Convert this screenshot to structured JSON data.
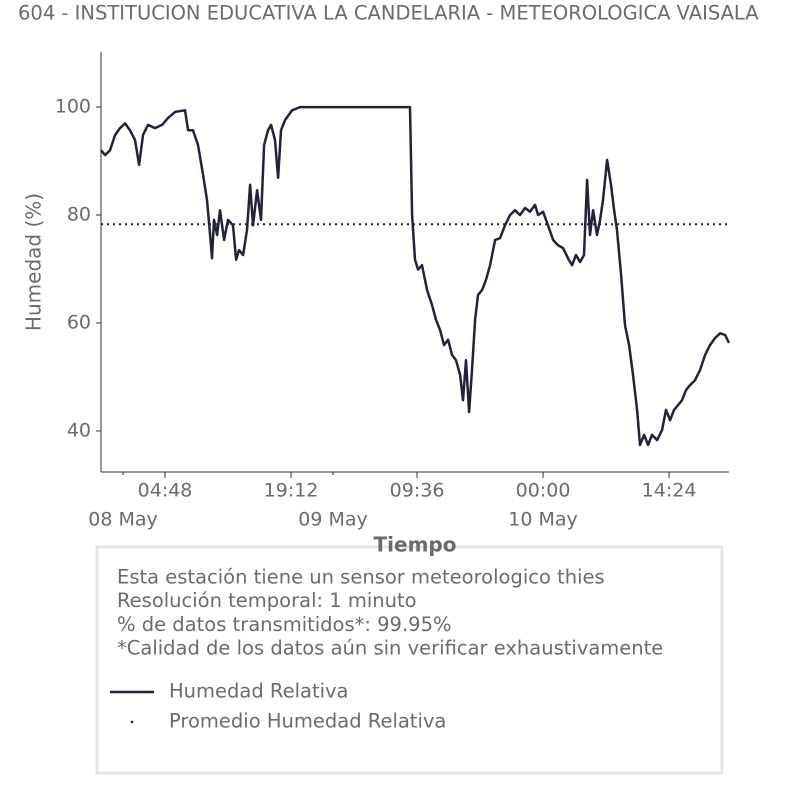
{
  "chart_data": {
    "type": "line",
    "title": "604 - INSTITUCION EDUCATIVA LA CANDELARIA - METEOROLOGICA VAISALA",
    "xlabel": "Tiempo",
    "ylabel": "Humedad (%)",
    "x": [
      "07 May 21:29",
      "07 May 21:57",
      "07 May 22:31",
      "07 May 23:05",
      "07 May 23:39",
      "08 May 00:14",
      "08 May 00:48",
      "08 May 01:22",
      "08 May 01:50",
      "08 May 02:17",
      "08 May 02:51",
      "08 May 03:39",
      "08 May 04:27",
      "08 May 05:09",
      "08 May 05:57",
      "08 May 07:05",
      "08 May 07:26",
      "08 May 08:00",
      "08 May 08:34",
      "08 May 09:09",
      "08 May 09:36",
      "08 May 09:57",
      "08 May 10:10",
      "08 May 10:24",
      "08 May 10:45",
      "08 May 11:05",
      "08 May 11:33",
      "08 May 12:00",
      "08 May 12:34",
      "08 May 12:55",
      "08 May 13:15",
      "08 May 13:43",
      "08 May 14:10",
      "08 May 14:31",
      "08 May 14:51",
      "08 May 15:19",
      "08 May 15:46",
      "08 May 16:07",
      "08 May 16:34",
      "08 May 16:55",
      "08 May 17:22",
      "08 May 17:43",
      "08 May 18:03",
      "08 May 18:31",
      "08 May 19:19",
      "08 May 20:14",
      "09 May 08:48",
      "09 May 09:02",
      "09 May 09:22",
      "09 May 09:43",
      "09 May 10:10",
      "09 May 10:45",
      "09 May 11:19",
      "09 May 11:46",
      "09 May 12:14",
      "09 May 12:41",
      "09 May 13:09",
      "09 May 13:36",
      "09 May 14:03",
      "09 May 14:31",
      "09 May 14:51",
      "09 May 15:12",
      "09 May 15:33",
      "09 May 15:53",
      "09 May 16:14",
      "09 May 16:34",
      "09 May 17:02",
      "09 May 17:29",
      "09 May 17:57",
      "09 May 18:31",
      "09 May 19:05",
      "09 May 19:39",
      "09 May 20:14",
      "09 May 20:48",
      "09 May 21:22",
      "09 May 21:57",
      "09 May 22:31",
      "09 May 23:05",
      "09 May 23:26",
      "10 May 00:00",
      "10 May 00:34",
      "10 May 01:09",
      "10 May 01:43",
      "10 May 02:17",
      "10 May 02:51",
      "10 May 03:19",
      "10 May 03:46",
      "10 May 04:14",
      "10 May 04:41",
      "10 May 05:02",
      "10 May 05:22",
      "10 May 05:43",
      "10 May 06:10",
      "10 May 06:31",
      "10 May 06:51",
      "10 May 07:19",
      "10 May 07:46",
      "10 May 08:07",
      "10 May 08:27",
      "10 May 08:55",
      "10 May 09:22",
      "10 May 09:50",
      "10 May 10:17",
      "10 May 10:45",
      "10 May 11:05",
      "10 May 11:33",
      "10 May 12:00",
      "10 May 12:27",
      "10 May 13:02",
      "10 May 13:36",
      "10 May 14:03",
      "10 May 14:31",
      "10 May 14:58",
      "10 May 15:26",
      "10 May 15:53",
      "10 May 16:21",
      "10 May 16:48",
      "10 May 17:22",
      "10 May 17:57",
      "10 May 18:31",
      "10 May 19:05",
      "10 May 19:39",
      "10 May 20:14",
      "10 May 20:48",
      "10 May 21:15"
    ],
    "series": [
      {
        "name": "Humedad Relativa",
        "color": "#22223b",
        "values": [
          92.0,
          91.1,
          92.0,
          94.8,
          96.1,
          97.0,
          95.7,
          93.9,
          89.3,
          94.8,
          96.7,
          96.1,
          96.7,
          98.0,
          99.1,
          99.4,
          95.7,
          95.7,
          93.0,
          87.4,
          82.8,
          76.3,
          72.0,
          79.1,
          76.3,
          80.9,
          75.4,
          79.1,
          78.1,
          71.7,
          73.5,
          72.6,
          77.2,
          85.6,
          78.1,
          84.6,
          79.1,
          93.0,
          95.7,
          96.7,
          93.9,
          86.9,
          95.7,
          97.6,
          99.4,
          100,
          100,
          80.0,
          71.7,
          69.9,
          70.7,
          66.1,
          63.3,
          60.6,
          58.7,
          55.9,
          56.9,
          54.1,
          53.1,
          50.4,
          45.7,
          53.1,
          43.5,
          51.3,
          60.6,
          65.2,
          66.1,
          68.0,
          70.7,
          75.4,
          75.7,
          78.1,
          80.0,
          80.9,
          80.0,
          81.3,
          80.6,
          81.9,
          80.0,
          80.6,
          78.1,
          75.4,
          74.4,
          73.9,
          72.0,
          70.7,
          72.6,
          71.3,
          72.6,
          86.5,
          76.3,
          80.9,
          76.3,
          79.1,
          82.8,
          90.2,
          85.6,
          80.9,
          77.2,
          68.9,
          59.6,
          55.9,
          50.4,
          43.9,
          37.4,
          39.3,
          37.4,
          39.3,
          38.3,
          40.2,
          43.9,
          42.0,
          43.9,
          44.8,
          45.7,
          47.6,
          48.5,
          49.4,
          51.3,
          54.1,
          55.9,
          57.2,
          58.1,
          57.8,
          56.3
        ]
      }
    ],
    "mean": {
      "name": "Promedio Humedad Relativa",
      "value": 78.3,
      "color": "#22223b"
    },
    "xlim": [
      "07 May 21:29",
      "10 May 21:15"
    ],
    "xticks": [
      {
        "value": "08 May 04:48",
        "label": "04:48"
      },
      {
        "value": "08 May 19:12",
        "label": "19:12"
      },
      {
        "value": "09 May 09:36",
        "label": "09:36"
      },
      {
        "value": "10 May 00:00",
        "label": "00:00"
      },
      {
        "value": "10 May 14:24",
        "label": "14:24"
      }
    ],
    "xticks_minor": [
      {
        "value": "08 May 00:00",
        "label": "08 May"
      },
      {
        "value": "09 May 00:00",
        "label": "09 May"
      },
      {
        "value": "10 May 00:00",
        "label": "10 May"
      }
    ],
    "ylim": [
      32.4,
      110.2
    ],
    "yticks": [
      40,
      60,
      80,
      100
    ],
    "info": [
      "Esta estación tiene un sensor meteorologico thies",
      "Resolución temporal: 1 minuto",
      "% de datos transmitidos*: 99.95%",
      "*Calidad de los datos aún sin verificar exhaustivamente"
    ]
  }
}
